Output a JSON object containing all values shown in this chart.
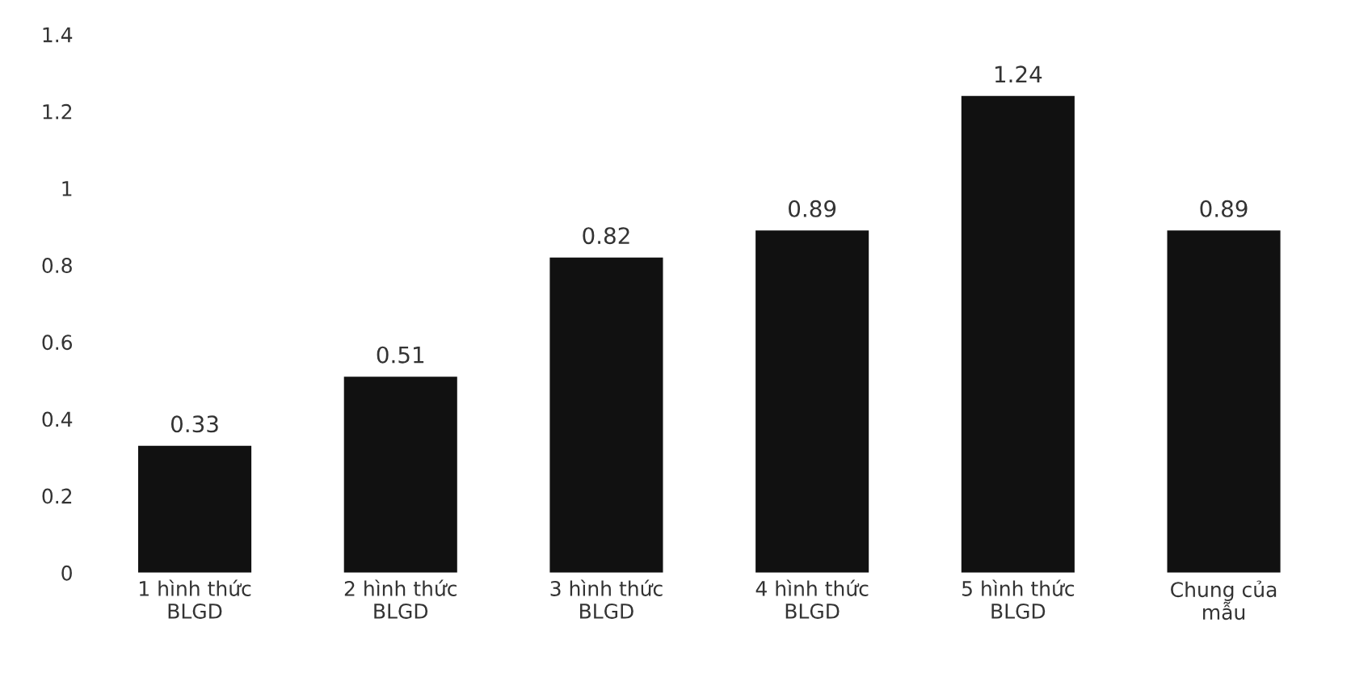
{
  "chart_data": {
    "type": "bar",
    "categories": [
      "1 hình thức\nBLGD",
      "2 hình thức\nBLGD",
      "3 hình thức\nBLGD",
      "4 hình thức\nBLGD",
      "5 hình thức\nBLGD",
      "Chung của\nmẫu"
    ],
    "values": [
      0.33,
      0.51,
      0.82,
      0.89,
      1.24,
      0.89
    ],
    "color": "#111111",
    "ylim": [
      0,
      1.4
    ],
    "yticks": [
      0,
      0.2,
      0.4,
      0.6,
      0.8,
      1,
      1.2,
      1.4
    ],
    "data_labels": true,
    "grid": false,
    "legend": false
  }
}
